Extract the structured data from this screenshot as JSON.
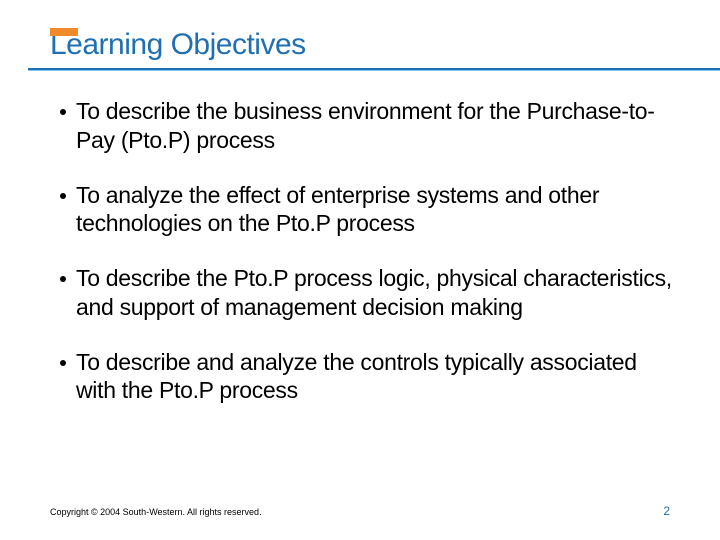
{
  "title": {
    "text": "Learning Objectives",
    "color": "#1f6fb2",
    "fontsize": 30,
    "orange_bar_color": "#f08a2a",
    "underline_primary": "#1f6fb2",
    "underline_secondary": "#7fc5ee"
  },
  "bullets": [
    {
      "text": "To describe the business environment for the Purchase-to-Pay (Pto.P) process"
    },
    {
      "text": "To analyze the effect of enterprise systems and other technologies on the Pto.P process"
    },
    {
      "text": "To describe the Pto.P process logic, physical characteristics, and support of management decision making"
    },
    {
      "text": "To describe and analyze the controls typically associated with the Pto.P process"
    }
  ],
  "bullet_style": {
    "fontsize": 23,
    "color": "#000000",
    "dot_color": "#000000"
  },
  "footer": {
    "copyright": "Copyright © 2004 South-Western. All rights reserved.",
    "page_number": "2",
    "copyright_fontsize": 9,
    "pagenum_fontsize": 12,
    "pagenum_color": "#1f6fb2"
  },
  "background_color": "#ffffff"
}
